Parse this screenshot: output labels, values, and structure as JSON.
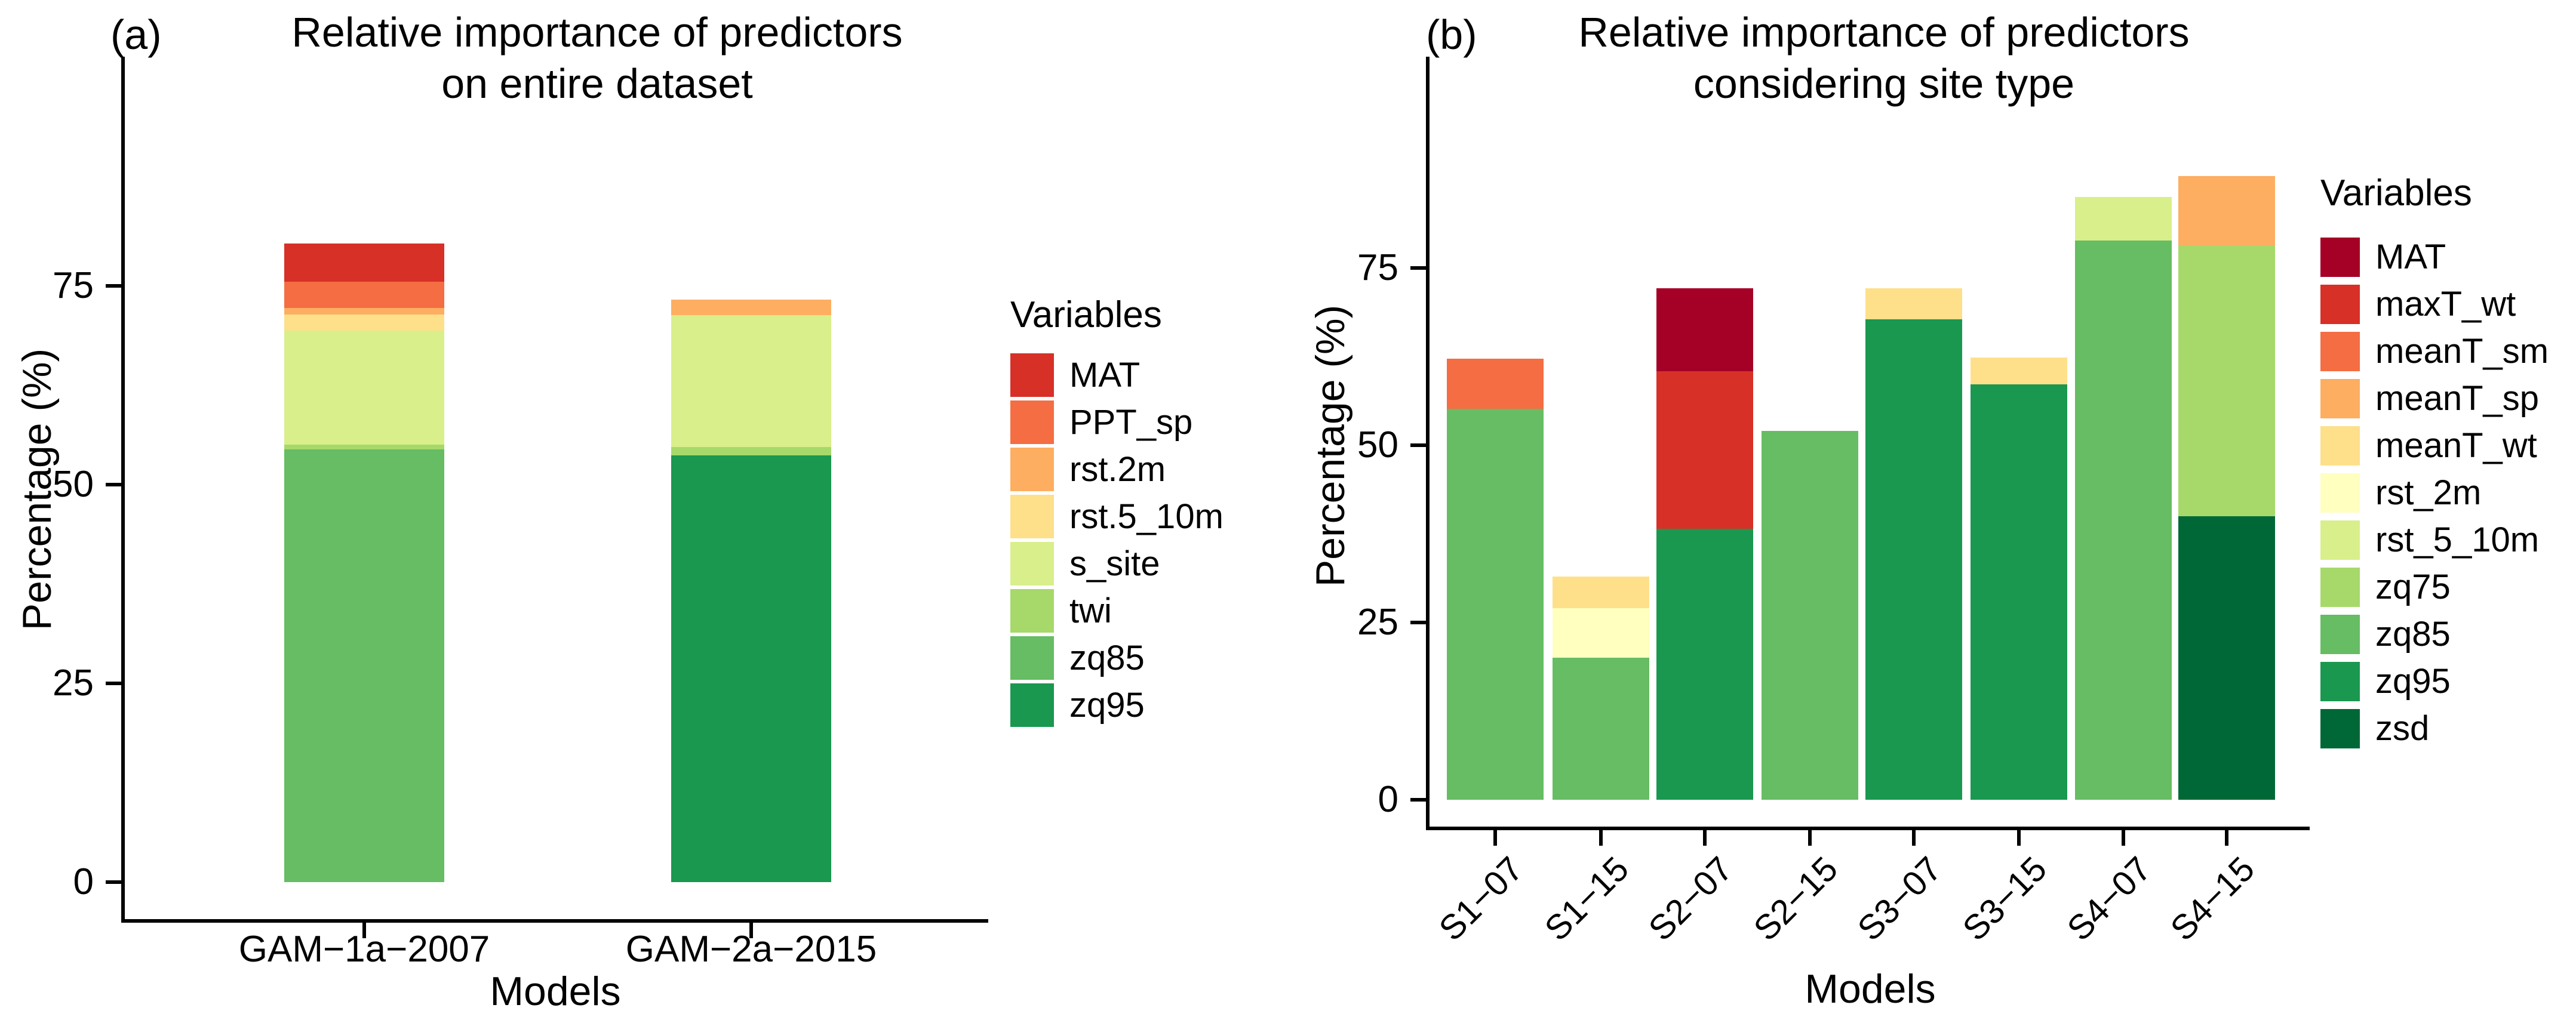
{
  "figure": {
    "background": "#ffffff",
    "axis_color": "#000000",
    "text_color": "#000000"
  },
  "chart_data": [
    {
      "type": "bar",
      "stacked": true,
      "panel_tag": "(a)",
      "title": "Relative importance of predictors",
      "subtitle": "on entire dataset",
      "xlabel": "Models",
      "ylabel": "Percentage (%)",
      "ylim": [
        0,
        100
      ],
      "yticks": [
        0,
        25,
        50,
        75
      ],
      "grid": false,
      "legend_position": "right",
      "legend_title": "Variables",
      "variables": [
        {
          "name": "MAT",
          "color": "#D73027"
        },
        {
          "name": "PPT_sp",
          "color": "#F46D43"
        },
        {
          "name": "rst.2m",
          "color": "#FDAE61"
        },
        {
          "name": "rst.5_10m",
          "color": "#FEE08B"
        },
        {
          "name": "s_site",
          "color": "#D9EF8B"
        },
        {
          "name": "twi",
          "color": "#A6D96A"
        },
        {
          "name": "zq85",
          "color": "#66BD63"
        },
        {
          "name": "zq95",
          "color": "#1A9850"
        }
      ],
      "categories": [
        "GAM−1a−2007",
        "GAM−2a−2015"
      ],
      "stacks": [
        {
          "category": "GAM−1a−2007",
          "total": 80.3,
          "segments": [
            {
              "variable": "zq85",
              "value": 54.4
            },
            {
              "variable": "twi",
              "value": 0.6
            },
            {
              "variable": "s_site",
              "value": 14.4
            },
            {
              "variable": "rst.5_10m",
              "value": 2.0
            },
            {
              "variable": "rst.2m",
              "value": 0.8
            },
            {
              "variable": "PPT_sp",
              "value": 3.3
            },
            {
              "variable": "MAT",
              "value": 4.8
            }
          ]
        },
        {
          "category": "GAM−2a−2015",
          "total": 73.3,
          "segments": [
            {
              "variable": "zq95",
              "value": 53.7
            },
            {
              "variable": "twi",
              "value": 1.0
            },
            {
              "variable": "s_site",
              "value": 16.6
            },
            {
              "variable": "rst.2m",
              "value": 2.0
            }
          ]
        }
      ]
    },
    {
      "type": "bar",
      "stacked": true,
      "panel_tag": "(b)",
      "title": "Relative importance of predictors",
      "subtitle": "considering site type",
      "xlabel": "Models",
      "ylabel": "Percentage (%)",
      "ylim": [
        0,
        100
      ],
      "yticks": [
        0,
        25,
        50,
        75
      ],
      "grid": false,
      "legend_position": "right",
      "legend_title": "Variables",
      "variables": [
        {
          "name": "MAT",
          "color": "#A50026"
        },
        {
          "name": "maxT_wt",
          "color": "#D73027"
        },
        {
          "name": "meanT_sm",
          "color": "#F46D43"
        },
        {
          "name": "meanT_sp",
          "color": "#FDAE61"
        },
        {
          "name": "meanT_wt",
          "color": "#FEE08B"
        },
        {
          "name": "rst_2m",
          "color": "#FFFFBF"
        },
        {
          "name": "rst_5_10m",
          "color": "#D9EF8B"
        },
        {
          "name": "zq75",
          "color": "#A6D96A"
        },
        {
          "name": "zq85",
          "color": "#66BD63"
        },
        {
          "name": "zq95",
          "color": "#1A9850"
        },
        {
          "name": "zsd",
          "color": "#006837"
        }
      ],
      "categories": [
        "S1−07",
        "S1−15",
        "S2−07",
        "S2−15",
        "S3−07",
        "S3−15",
        "S4−07",
        "S4−15"
      ],
      "stacks": [
        {
          "category": "S1−07",
          "total": 62.2,
          "segments": [
            {
              "variable": "zq85",
              "value": 55.1
            },
            {
              "variable": "meanT_sm",
              "value": 7.1
            }
          ]
        },
        {
          "category": "S1−15",
          "total": 31.5,
          "segments": [
            {
              "variable": "zq85",
              "value": 20.0
            },
            {
              "variable": "rst_2m",
              "value": 7.0
            },
            {
              "variable": "meanT_wt",
              "value": 4.5
            }
          ]
        },
        {
          "category": "S2−07",
          "total": 72.1,
          "segments": [
            {
              "variable": "zq95",
              "value": 38.2
            },
            {
              "variable": "maxT_wt",
              "value": 22.2
            },
            {
              "variable": "MAT",
              "value": 11.7
            }
          ]
        },
        {
          "category": "S2−15",
          "total": 52.0,
          "segments": [
            {
              "variable": "zq85",
              "value": 52.0
            }
          ]
        },
        {
          "category": "S3−07",
          "total": 72.1,
          "segments": [
            {
              "variable": "zq95",
              "value": 67.8
            },
            {
              "variable": "meanT_wt",
              "value": 4.3
            }
          ]
        },
        {
          "category": "S3−15",
          "total": 62.4,
          "segments": [
            {
              "variable": "zq95",
              "value": 58.6
            },
            {
              "variable": "meanT_wt",
              "value": 3.8
            }
          ]
        },
        {
          "category": "S4−07",
          "total": 85.0,
          "segments": [
            {
              "variable": "zq85",
              "value": 78.9
            },
            {
              "variable": "rst_5_10m",
              "value": 6.1
            }
          ]
        },
        {
          "category": "S4−15",
          "total": 88.0,
          "segments": [
            {
              "variable": "zsd",
              "value": 40.0
            },
            {
              "variable": "zq75",
              "value": 38.1
            },
            {
              "variable": "meanT_sp",
              "value": 9.9
            }
          ]
        }
      ]
    }
  ]
}
